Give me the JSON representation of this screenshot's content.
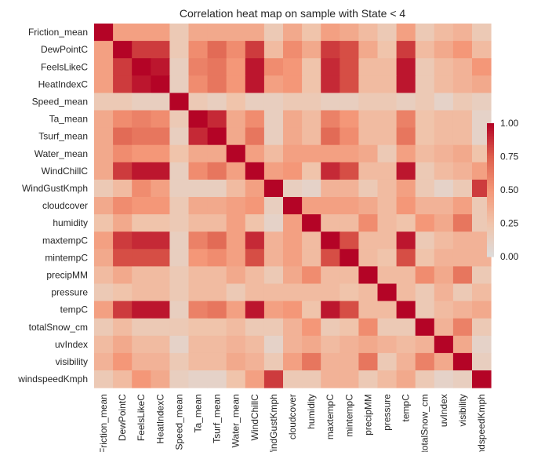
{
  "chart_data": {
    "type": "heatmap",
    "title": "Correlation heat map on sample with State < 4",
    "xlabel": "",
    "ylabel": "",
    "x": [
      "Friction_mean",
      "DewPointC",
      "FeelsLikeC",
      "HeatIndexC",
      "Speed_mean",
      "Ta_mean",
      "Tsurf_mean",
      "Water_mean",
      "WindChillC",
      "WindGustKmph",
      "cloudcover",
      "humidity",
      "maxtempC",
      "mintempC",
      "precipMM",
      "pressure",
      "tempC",
      "totalSnow_cm",
      "uvIndex",
      "visibility",
      "windspeedKmph"
    ],
    "y": [
      "Friction_mean",
      "DewPointC",
      "FeelsLikeC",
      "HeatIndexC",
      "Speed_mean",
      "Ta_mean",
      "Tsurf_mean",
      "Water_mean",
      "WindChillC",
      "WindGustKmph",
      "cloudcover",
      "humidity",
      "maxtempC",
      "mintempC",
      "precipMM",
      "pressure",
      "tempC",
      "totalSnow_cm",
      "uvIndex",
      "visibility",
      "windspeedKmph"
    ],
    "values": [
      [
        1.0,
        0.45,
        0.45,
        0.45,
        0.2,
        0.4,
        0.4,
        0.4,
        0.4,
        0.2,
        0.4,
        0.25,
        0.45,
        0.4,
        0.3,
        0.2,
        0.45,
        0.2,
        0.3,
        0.35,
        0.2
      ],
      [
        0.45,
        1.0,
        0.85,
        0.85,
        0.2,
        0.55,
        0.7,
        0.55,
        0.85,
        0.3,
        0.55,
        0.4,
        0.85,
        0.8,
        0.4,
        0.25,
        0.85,
        0.3,
        0.4,
        0.5,
        0.3
      ],
      [
        0.45,
        0.85,
        1.0,
        0.95,
        0.15,
        0.6,
        0.65,
        0.5,
        0.95,
        0.55,
        0.5,
        0.25,
        0.9,
        0.8,
        0.3,
        0.3,
        0.95,
        0.2,
        0.3,
        0.35,
        0.5
      ],
      [
        0.45,
        0.85,
        0.95,
        1.0,
        0.15,
        0.55,
        0.65,
        0.5,
        0.95,
        0.45,
        0.5,
        0.25,
        0.9,
        0.8,
        0.3,
        0.3,
        0.95,
        0.2,
        0.3,
        0.35,
        0.4
      ],
      [
        0.2,
        0.2,
        0.15,
        0.15,
        1.0,
        0.2,
        0.15,
        0.25,
        0.15,
        0.15,
        0.2,
        0.2,
        0.15,
        0.15,
        0.2,
        0.2,
        0.15,
        0.2,
        0.1,
        0.2,
        0.15
      ],
      [
        0.4,
        0.55,
        0.6,
        0.55,
        0.2,
        1.0,
        0.9,
        0.4,
        0.55,
        0.15,
        0.4,
        0.3,
        0.6,
        0.5,
        0.3,
        0.3,
        0.6,
        0.25,
        0.3,
        0.3,
        0.1
      ],
      [
        0.4,
        0.7,
        0.65,
        0.65,
        0.15,
        0.9,
        1.0,
        0.4,
        0.65,
        0.15,
        0.4,
        0.3,
        0.7,
        0.55,
        0.3,
        0.3,
        0.65,
        0.25,
        0.3,
        0.3,
        0.1
      ],
      [
        0.4,
        0.55,
        0.5,
        0.5,
        0.25,
        0.4,
        0.4,
        1.0,
        0.45,
        0.3,
        0.45,
        0.45,
        0.45,
        0.45,
        0.4,
        0.2,
        0.45,
        0.3,
        0.35,
        0.4,
        0.25
      ],
      [
        0.4,
        0.85,
        0.95,
        0.95,
        0.15,
        0.55,
        0.65,
        0.45,
        1.0,
        0.45,
        0.5,
        0.25,
        0.9,
        0.8,
        0.3,
        0.3,
        0.95,
        0.2,
        0.3,
        0.35,
        0.45
      ],
      [
        0.2,
        0.3,
        0.55,
        0.45,
        0.15,
        0.15,
        0.15,
        0.3,
        0.45,
        1.0,
        0.15,
        0.1,
        0.35,
        0.35,
        0.2,
        0.3,
        0.45,
        0.2,
        0.1,
        0.2,
        0.85
      ],
      [
        0.4,
        0.55,
        0.5,
        0.5,
        0.2,
        0.4,
        0.4,
        0.45,
        0.5,
        0.15,
        1.0,
        0.45,
        0.45,
        0.45,
        0.4,
        0.3,
        0.5,
        0.35,
        0.35,
        0.45,
        0.2
      ],
      [
        0.25,
        0.4,
        0.25,
        0.25,
        0.2,
        0.3,
        0.3,
        0.45,
        0.25,
        0.1,
        0.45,
        1.0,
        0.3,
        0.3,
        0.55,
        0.3,
        0.25,
        0.5,
        0.4,
        0.65,
        0.2
      ],
      [
        0.45,
        0.85,
        0.9,
        0.9,
        0.15,
        0.6,
        0.7,
        0.45,
        0.9,
        0.35,
        0.45,
        0.3,
        1.0,
        0.8,
        0.3,
        0.3,
        0.95,
        0.2,
        0.3,
        0.35,
        0.35
      ],
      [
        0.4,
        0.8,
        0.8,
        0.8,
        0.15,
        0.5,
        0.55,
        0.45,
        0.8,
        0.35,
        0.45,
        0.3,
        0.8,
        1.0,
        0.3,
        0.25,
        0.8,
        0.25,
        0.35,
        0.35,
        0.35
      ],
      [
        0.3,
        0.4,
        0.3,
        0.3,
        0.2,
        0.3,
        0.3,
        0.4,
        0.3,
        0.2,
        0.4,
        0.55,
        0.3,
        0.3,
        1.0,
        0.3,
        0.3,
        0.55,
        0.4,
        0.65,
        0.2
      ],
      [
        0.2,
        0.25,
        0.3,
        0.3,
        0.2,
        0.3,
        0.3,
        0.2,
        0.3,
        0.3,
        0.3,
        0.3,
        0.3,
        0.25,
        0.3,
        1.0,
        0.3,
        0.2,
        0.35,
        0.2,
        0.3
      ],
      [
        0.45,
        0.85,
        0.95,
        0.95,
        0.15,
        0.6,
        0.65,
        0.45,
        0.95,
        0.45,
        0.5,
        0.25,
        0.95,
        0.8,
        0.3,
        0.3,
        1.0,
        0.2,
        0.3,
        0.35,
        0.4
      ],
      [
        0.2,
        0.3,
        0.2,
        0.2,
        0.2,
        0.25,
        0.25,
        0.3,
        0.2,
        0.2,
        0.35,
        0.5,
        0.2,
        0.25,
        0.55,
        0.2,
        0.2,
        1.0,
        0.35,
        0.6,
        0.2
      ],
      [
        0.3,
        0.4,
        0.3,
        0.3,
        0.1,
        0.3,
        0.3,
        0.35,
        0.3,
        0.1,
        0.35,
        0.4,
        0.3,
        0.35,
        0.4,
        0.35,
        0.3,
        0.35,
        1.0,
        0.4,
        0.1
      ],
      [
        0.35,
        0.5,
        0.35,
        0.35,
        0.2,
        0.3,
        0.3,
        0.4,
        0.35,
        0.2,
        0.45,
        0.65,
        0.35,
        0.35,
        0.65,
        0.2,
        0.35,
        0.6,
        0.4,
        1.0,
        0.15
      ],
      [
        0.2,
        0.3,
        0.5,
        0.4,
        0.15,
        0.1,
        0.1,
        0.25,
        0.45,
        0.85,
        0.2,
        0.2,
        0.35,
        0.35,
        0.2,
        0.3,
        0.4,
        0.2,
        0.1,
        0.15,
        1.0
      ]
    ],
    "zlim": [
      0.0,
      1.0
    ],
    "colorbar": {
      "ticks": [
        0.0,
        0.25,
        0.5,
        0.75,
        1.0
      ],
      "tick_labels": [
        "0.00",
        "0.25",
        "0.50",
        "0.75",
        "1.00"
      ]
    },
    "colormap": "coolwarm",
    "color_low": "#dddcdc",
    "color_high": "#b40426",
    "grid": false
  }
}
